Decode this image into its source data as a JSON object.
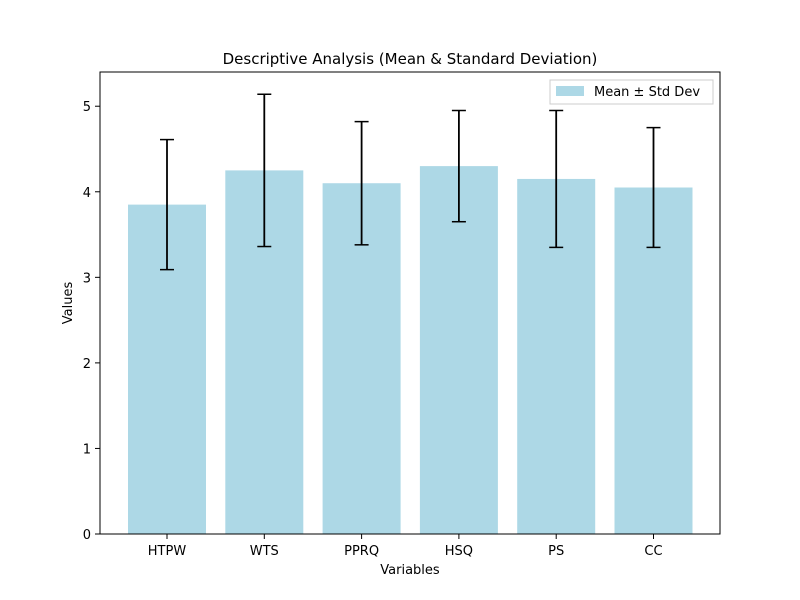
{
  "chart_data": {
    "type": "bar",
    "title": "Descriptive Analysis (Mean & Standard Deviation)",
    "xlabel": "Variables",
    "ylabel": "Values",
    "categories": [
      "HTPW",
      "WTS",
      "PPRQ",
      "HSQ",
      "PS",
      "CC"
    ],
    "series": [
      {
        "name": "Mean ± Std Dev",
        "values": [
          3.85,
          4.25,
          4.1,
          4.3,
          4.15,
          4.05
        ],
        "error": [
          0.76,
          0.89,
          0.72,
          0.65,
          0.8,
          0.7
        ]
      }
    ],
    "ylim": [
      0,
      5.4
    ],
    "yticks": [
      0,
      1,
      2,
      3,
      4,
      5
    ],
    "grid": false,
    "legend": "top-right",
    "colors": {
      "bar": "#add8e6",
      "error": "#000000",
      "axis": "#000000"
    }
  }
}
